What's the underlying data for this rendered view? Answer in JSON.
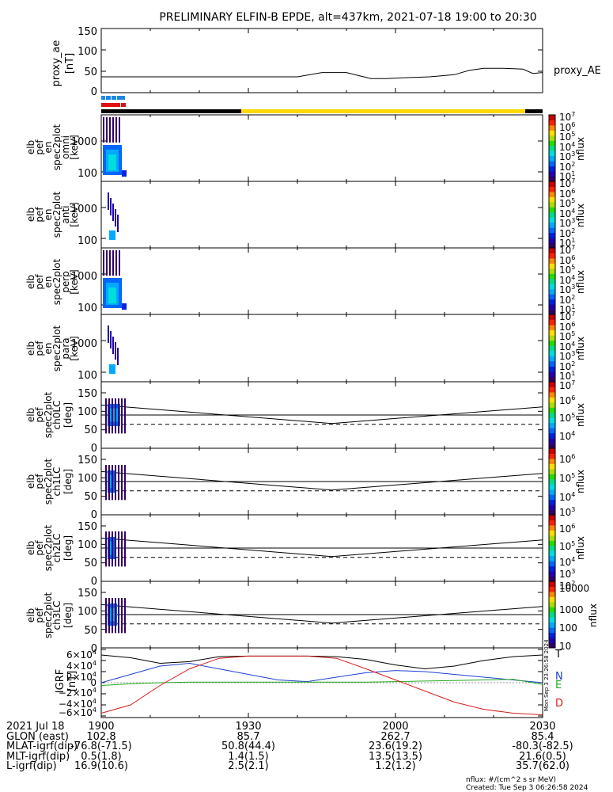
{
  "title": "PRELIMINARY ELFIN-B EPDE, alt=437km, 2021-07-18 19:00 to 20:30",
  "colors": {
    "ae_line": "#000000",
    "bar_blue": "#1e88e5",
    "bar_red": "#e01010",
    "bar_black": "#000000",
    "bar_yellow": "#ffd800",
    "grf_T": "#000000",
    "grf_N": "#1f3fd0",
    "grf_E": "#22aa22",
    "grf_D": "#d81b1b"
  },
  "panels": [
    {
      "name": "proxy-ae",
      "ylabel": [
        "proxy_ae",
        "[nT]"
      ],
      "legend": "proxy_AE",
      "yticks": [
        "150",
        "100",
        "50",
        "0"
      ]
    },
    {
      "name": "omni",
      "ylabel": [
        "elb",
        "pef",
        "en",
        "spec2plot",
        "omni",
        "[keV]"
      ],
      "yticks": [
        "1000",
        "100"
      ],
      "cbar": {
        "label": "nflux",
        "ticks": [
          {
            "b": "10",
            "e": "7"
          },
          {
            "b": "10",
            "e": "6"
          },
          {
            "b": "10",
            "e": "5"
          },
          {
            "b": "10",
            "e": "4"
          },
          {
            "b": "10",
            "e": "3"
          },
          {
            "b": "10",
            "e": "2"
          },
          {
            "b": "10",
            "e": "1"
          }
        ]
      }
    },
    {
      "name": "anti",
      "ylabel": [
        "elb",
        "pef",
        "en",
        "spec2plot",
        "anti",
        "[keV]"
      ],
      "yticks": [
        "1000",
        "100"
      ],
      "cbar": {
        "label": "nflux",
        "ticks": [
          {
            "b": "10",
            "e": "7"
          },
          {
            "b": "10",
            "e": "6"
          },
          {
            "b": "10",
            "e": "5"
          },
          {
            "b": "10",
            "e": "4"
          },
          {
            "b": "10",
            "e": "3"
          },
          {
            "b": "10",
            "e": "2"
          },
          {
            "b": "10",
            "e": "1"
          }
        ]
      }
    },
    {
      "name": "perp",
      "ylabel": [
        "elb",
        "pef",
        "en",
        "spec2plot",
        "perp",
        "[keV]"
      ],
      "yticks": [
        "1000",
        "100"
      ],
      "cbar": {
        "label": "nflux",
        "ticks": [
          {
            "b": "10",
            "e": "7"
          },
          {
            "b": "10",
            "e": "6"
          },
          {
            "b": "10",
            "e": "5"
          },
          {
            "b": "10",
            "e": "4"
          },
          {
            "b": "10",
            "e": "3"
          },
          {
            "b": "10",
            "e": "2"
          },
          {
            "b": "10",
            "e": "1"
          }
        ]
      }
    },
    {
      "name": "para",
      "ylabel": [
        "elb",
        "pef",
        "en",
        "spec2plot",
        "para",
        "[keV]"
      ],
      "yticks": [
        "1000",
        "100"
      ],
      "cbar": {
        "label": "nflux",
        "ticks": [
          {
            "b": "10",
            "e": "7"
          },
          {
            "b": "10",
            "e": "6"
          },
          {
            "b": "10",
            "e": "5"
          },
          {
            "b": "10",
            "e": "4"
          },
          {
            "b": "10",
            "e": "3"
          },
          {
            "b": "10",
            "e": "2"
          },
          {
            "b": "10",
            "e": "1"
          }
        ]
      }
    },
    {
      "name": "ch0lc",
      "ylabel": [
        "elb",
        "pef",
        "spec2plot",
        "ch0LC",
        "[deg]"
      ],
      "yticks": [
        "150",
        "100",
        "50",
        "0"
      ],
      "cbar": {
        "label": "nflux",
        "ticks": [
          {
            "b": "10",
            "e": "7"
          },
          {
            "b": "10",
            "e": "6"
          },
          {
            "b": "10",
            "e": "5"
          },
          {
            "b": "10",
            "e": "4"
          }
        ]
      }
    },
    {
      "name": "ch1lc",
      "ylabel": [
        "elb",
        "pef",
        "spec2plot",
        "ch1LC",
        "[deg]"
      ],
      "yticks": [
        "150",
        "100",
        "50",
        "0"
      ],
      "cbar": {
        "label": "nflux",
        "ticks": [
          {
            "b": "10",
            "e": "6"
          },
          {
            "b": "10",
            "e": "5"
          },
          {
            "b": "10",
            "e": "4"
          },
          {
            "b": "10",
            "e": "3"
          }
        ]
      }
    },
    {
      "name": "ch2lc",
      "ylabel": [
        "elb",
        "pef",
        "spec2plot",
        "ch2LC",
        "[deg]"
      ],
      "yticks": [
        "150",
        "100",
        "50",
        "0"
      ],
      "cbar": {
        "label": "nflux",
        "ticks": [
          {
            "b": "10",
            "e": "6"
          },
          {
            "b": "10",
            "e": "5"
          },
          {
            "b": "10",
            "e": "4"
          },
          {
            "b": "10",
            "e": "3"
          },
          {
            "b": "10",
            "e": "2"
          }
        ]
      }
    },
    {
      "name": "ch3lc",
      "ylabel": [
        "elb",
        "pef",
        "spec2plot",
        "ch3LC",
        "[deg]"
      ],
      "yticks": [
        "150",
        "100",
        "50",
        "0"
      ],
      "cbar": {
        "label": "nflux",
        "ticks": [
          {
            "b": "10000"
          },
          {
            "b": "1000"
          },
          {
            "b": "100"
          },
          {
            "b": "10"
          }
        ]
      }
    },
    {
      "name": "igrf",
      "ylabel": [
        "IGRF",
        "[nT]"
      ],
      "yticks": [
        {
          "m": "6",
          "e": "4"
        },
        {
          "m": "4",
          "e": "4"
        },
        {
          "m": "2",
          "e": "4"
        },
        {
          "m": "0"
        },
        {
          "m": "−2",
          "e": "4"
        },
        {
          "m": "−4",
          "e": "4"
        },
        {
          "m": "−6",
          "e": "4"
        }
      ],
      "legend": [
        "T",
        "N",
        "E",
        "D"
      ]
    }
  ],
  "stamp": "Mon Sep  3 23:26:58 2024",
  "footer": {
    "rows": [
      {
        "label": "2021 Jul 18",
        "values": [
          "1900",
          "1930",
          "2000",
          "2030"
        ]
      },
      {
        "label": "GLON (east)",
        "values": [
          "102.8",
          "85.7",
          "262.7",
          "85.4"
        ]
      },
      {
        "label": "MLAT-igrf(dip)",
        "values": [
          "-76.8(-71.5)",
          "50.8(44.4)",
          "23.6(19.2)",
          "-80.3(-82.5)"
        ]
      },
      {
        "label": "MLT-igrf(dip)",
        "values": [
          "0.5(1.8)",
          "1.4(1.5)",
          "13.5(13.5)",
          "21.6(0.5)"
        ]
      },
      {
        "label": "L-igrf(dip)",
        "values": [
          "16.9(10.6)",
          "2.5(2.1)",
          "1.2(1.2)",
          "35.7(62.0)"
        ]
      }
    ],
    "units": "nflux: #/(cm^2 s sr MeV)",
    "created": "Created: Tue Sep  3 06:26:58 2024"
  },
  "chart_data": {
    "type": "line",
    "title": "PRELIMINARY ELFIN-B EPDE, alt=437km, 2021-07-18 19:00 to 20:30",
    "x_axis": {
      "label": "2021 Jul 18",
      "ticks": [
        "1900",
        "1930",
        "2000",
        "2030"
      ],
      "range_minutes": [
        0,
        90
      ]
    },
    "proxy_ae": {
      "name": "proxy_AE",
      "ylim": [
        0,
        150
      ],
      "ylabel": "proxy_ae [nT]",
      "x": [
        0,
        10,
        20,
        30,
        40,
        45,
        50,
        55,
        58,
        62,
        67,
        72,
        75,
        78,
        82,
        86,
        88,
        90
      ],
      "y": [
        37,
        37,
        37,
        37,
        37,
        47,
        47,
        33,
        33,
        35,
        37,
        42,
        52,
        57,
        57,
        55,
        45,
        47
      ]
    },
    "spectrograms": [
      {
        "name": "omni",
        "ylabel": "[keV]",
        "yscale": "log",
        "cbar_range": [
          10,
          10000000
        ]
      },
      {
        "name": "anti",
        "ylabel": "[keV]",
        "yscale": "log",
        "cbar_range": [
          10,
          10000000
        ]
      },
      {
        "name": "perp",
        "ylabel": "[keV]",
        "yscale": "log",
        "cbar_range": [
          10,
          10000000
        ]
      },
      {
        "name": "para",
        "ylabel": "[keV]",
        "yscale": "log",
        "cbar_range": [
          10,
          10000000
        ]
      }
    ],
    "pitch_angle": {
      "panels": [
        "ch0LC",
        "ch1LC",
        "ch2LC",
        "ch3LC"
      ],
      "ylim": [
        0,
        180
      ],
      "reference_solid": 90,
      "lc_x": [
        0,
        47,
        90
      ],
      "lc_solid": [
        117,
        67,
        112
      ],
      "lc_dashed": [
        65,
        65,
        65
      ]
    },
    "igrf": {
      "ylim": [
        -60000,
        60000
      ],
      "x": [
        0,
        6,
        12,
        18,
        24,
        30,
        36,
        42,
        48,
        54,
        60,
        66,
        72,
        78,
        84,
        90
      ],
      "series": [
        {
          "name": "T",
          "values": [
            50000,
            45000,
            35000,
            38000,
            47000,
            48000,
            48000,
            48000,
            47000,
            42000,
            32000,
            25000,
            30000,
            40000,
            47000,
            50000
          ]
        },
        {
          "name": "N",
          "values": [
            0,
            15000,
            30000,
            35000,
            25000,
            15000,
            5000,
            2000,
            10000,
            18000,
            22000,
            20000,
            15000,
            10000,
            5000,
            0
          ]
        },
        {
          "name": "E",
          "values": [
            -5000,
            -2000,
            0,
            1000,
            1000,
            1000,
            1000,
            1000,
            1000,
            1000,
            2000,
            3000,
            4000,
            5000,
            6000,
            -3000
          ]
        },
        {
          "name": "D",
          "values": [
            -55000,
            -40000,
            -5000,
            25000,
            44000,
            48000,
            48000,
            48000,
            44000,
            25000,
            5000,
            -15000,
            -35000,
            -48000,
            -55000,
            -58000
          ]
        }
      ]
    }
  }
}
